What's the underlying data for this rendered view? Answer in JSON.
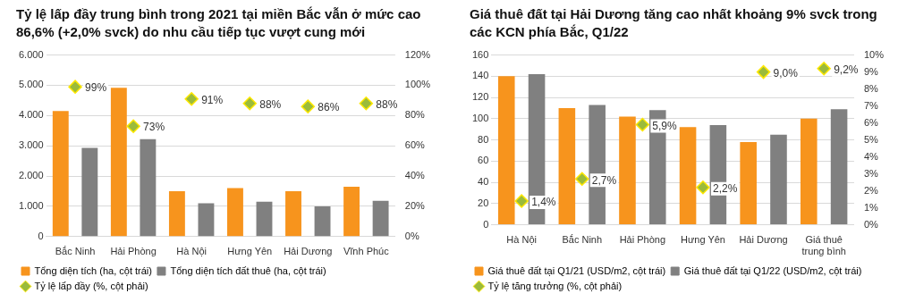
{
  "chart_data": [
    {
      "type": "bar",
      "title": "Tỷ lệ lấp đầy trung bình trong 2021 tại miền Bắc vẫn ở mức cao 86,6% (+2,0% svck) do nhu cầu tiếp tục vượt cung mới",
      "categories": [
        "Bắc Ninh",
        "Hải Phòng",
        "Hà Nội",
        "Hưng Yên",
        "Hải Dương",
        "Vĩnh Phúc"
      ],
      "series": [
        {
          "name": "Tổng diện tích (ha, cột trái)",
          "color": "#f7941d",
          "values": [
            4150,
            4920,
            1500,
            1600,
            1500,
            1650
          ]
        },
        {
          "name": "Tổng diện tích đất thuê (ha, cột trái)",
          "color": "#808080",
          "values": [
            2930,
            3220,
            1100,
            1150,
            1000,
            1180
          ]
        },
        {
          "name": "Tỷ lệ lấp đầy (%, cột phải)",
          "type": "scatter",
          "axis": "y2",
          "color": "#9bbb3b",
          "marker": "diamond",
          "x": [
            "Bắc Ninh",
            "Hải Phòng",
            "Hà Nội",
            "Hưng Yên",
            "Hải Dương",
            "Vĩnh Phúc"
          ],
          "values": [
            99,
            73,
            91,
            88,
            86,
            88
          ],
          "value_labels": [
            "99%",
            "73%",
            "91%",
            "88%",
            "86%",
            "88%"
          ]
        }
      ],
      "ylim": [
        0,
        6000
      ],
      "yticks": [
        {
          "value": 0,
          "label": "0"
        },
        {
          "value": 1000,
          "label": "1.000"
        },
        {
          "value": 2000,
          "label": "2.000"
        },
        {
          "value": 3000,
          "label": "3.000"
        },
        {
          "value": 4000,
          "label": "4.000"
        },
        {
          "value": 5000,
          "label": "5.000"
        },
        {
          "value": 6000,
          "label": "6.000"
        }
      ],
      "y2lim": [
        0,
        120
      ],
      "y2ticks": [
        {
          "value": 0,
          "label": "0%"
        },
        {
          "value": 20,
          "label": "20%"
        },
        {
          "value": 40,
          "label": "40%"
        },
        {
          "value": 60,
          "label": "60%"
        },
        {
          "value": 80,
          "label": "80%"
        },
        {
          "value": 100,
          "label": "100%"
        },
        {
          "value": 120,
          "label": "120%"
        }
      ],
      "grid": "y",
      "legend": "bottom"
    },
    {
      "type": "bar",
      "title": "Giá thuê đất tại Hải Dương tăng cao nhất khoảng 9% svck trong các KCN phía Bắc, Q1/22",
      "categories": [
        "Hà Nội",
        "Bắc Ninh",
        "Hải Phòng",
        "Hưng Yên",
        "Hải Dương",
        "Giá thuê\ntrung bình"
      ],
      "series": [
        {
          "name": "Giá thuê đất tại Q1/21 (USD/m2, cột trái)",
          "color": "#f7941d",
          "values": [
            140,
            110,
            102,
            92,
            78,
            100
          ]
        },
        {
          "name": "Giá thuê đất tại Q1/22 (USD/m2, cột trái)",
          "color": "#808080",
          "values": [
            142,
            113,
            108,
            94,
            85,
            109
          ]
        },
        {
          "name": "Tỷ lệ tăng trưởng (%, cột phải)",
          "type": "scatter",
          "axis": "y2",
          "color": "#9bbb3b",
          "marker": "diamond",
          "x": [
            "Hà Nội",
            "Bắc Ninh",
            "Hải Phòng",
            "Hưng Yên",
            "Hải Dương",
            "Giá thuê\ntrung bình"
          ],
          "values": [
            1.4,
            2.7,
            5.9,
            2.2,
            9.0,
            9.2
          ],
          "value_labels": [
            "1,4%",
            "2,7%",
            "5,9%",
            "2,2%",
            "9,0%",
            "9,2%"
          ]
        }
      ],
      "ylim": [
        0,
        160
      ],
      "yticks": [
        0,
        20,
        40,
        60,
        80,
        100,
        120,
        140,
        160
      ],
      "y2lim": [
        0,
        10
      ],
      "y2ticks": [
        {
          "value": 0,
          "label": "0%"
        },
        {
          "value": 1,
          "label": "1%"
        },
        {
          "value": 2,
          "label": "2%"
        },
        {
          "value": 3,
          "label": "3%"
        },
        {
          "value": 4,
          "label": "4%"
        },
        {
          "value": 5,
          "label": "5%"
        },
        {
          "value": 6,
          "label": "6%"
        },
        {
          "value": 7,
          "label": "7%"
        },
        {
          "value": 8,
          "label": "8%"
        },
        {
          "value": 9,
          "label": "9%"
        },
        {
          "value": 10,
          "label": "10%"
        }
      ],
      "grid": "y",
      "legend": "bottom"
    }
  ]
}
